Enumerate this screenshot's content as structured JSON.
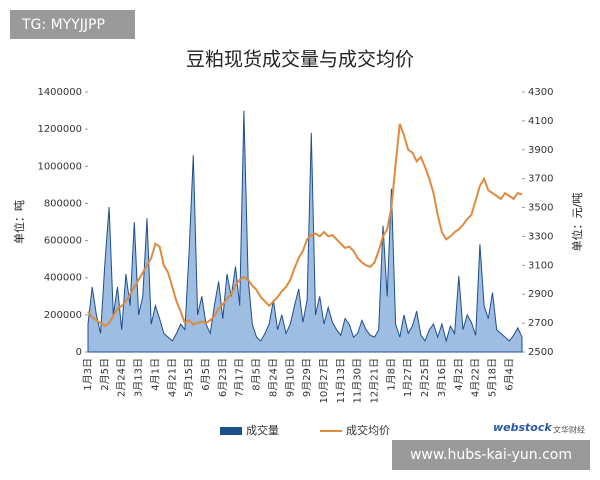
{
  "chart_data": {
    "type": "area-line",
    "title": "豆粕现货成交量与成交均价",
    "ylabel": "单位：吨",
    "y2label": "单位：元/吨",
    "categories": [
      "1月3日",
      null,
      null,
      null,
      "2月5日",
      null,
      null,
      null,
      "2月24日",
      null,
      null,
      null,
      "3月13日",
      null,
      null,
      null,
      "4月1日",
      null,
      null,
      null,
      "4月21日",
      null,
      null,
      null,
      "5月15日",
      null,
      null,
      null,
      "6月5日",
      null,
      null,
      null,
      "6月23日",
      null,
      null,
      null,
      "7月17日",
      null,
      null,
      null,
      "8月5日",
      null,
      null,
      null,
      "8月24日",
      null,
      null,
      null,
      "9月10日",
      null,
      null,
      null,
      "9月29日",
      null,
      null,
      null,
      "10月27日",
      null,
      null,
      null,
      "11月13日",
      null,
      null,
      null,
      "11月30日",
      null,
      null,
      null,
      "12月21日",
      null,
      null,
      null,
      "1月8日",
      null,
      null,
      null,
      "1月27日",
      null,
      null,
      null,
      "2月25日",
      null,
      null,
      null,
      "3月16日",
      null,
      null,
      null,
      "4月2日",
      null,
      null,
      null,
      "4月22日",
      null,
      null,
      null,
      "5月18日",
      null,
      null,
      null,
      "6月4日",
      null,
      null,
      null
    ],
    "series": [
      {
        "name": "成交量",
        "color": "#1f4e8c",
        "fill": "#9dbde2",
        "values": [
          150000,
          350000,
          200000,
          100000,
          480000,
          780000,
          200000,
          350000,
          120000,
          420000,
          250000,
          700000,
          200000,
          300000,
          720000,
          150000,
          250000,
          180000,
          100000,
          80000,
          60000,
          100000,
          150000,
          120000,
          540000,
          1060000,
          200000,
          300000,
          150000,
          100000,
          250000,
          380000,
          180000,
          420000,
          300000,
          460000,
          250000,
          1300000,
          400000,
          150000,
          80000,
          60000,
          100000,
          150000,
          280000,
          120000,
          200000,
          100000,
          150000,
          250000,
          340000,
          160000,
          280000,
          1180000,
          200000,
          300000,
          150000,
          240000,
          160000,
          120000,
          90000,
          180000,
          150000,
          80000,
          100000,
          170000,
          120000,
          90000,
          80000,
          120000,
          680000,
          300000,
          880000,
          150000,
          80000,
          200000,
          100000,
          140000,
          220000,
          90000,
          60000,
          120000,
          150000,
          80000,
          150000,
          60000,
          140000,
          100000,
          410000,
          120000,
          200000,
          160000,
          90000,
          580000,
          250000,
          180000,
          320000,
          120000,
          100000,
          80000,
          60000,
          90000,
          130000,
          80000
        ]
      },
      {
        "name": "成交均价",
        "color": "#e08a3c",
        "axis": "y2",
        "values": [
          2780,
          2740,
          2720,
          2700,
          2680,
          2700,
          2750,
          2800,
          2820,
          2850,
          2900,
          2950,
          3000,
          3050,
          3100,
          3150,
          3250,
          3230,
          3100,
          3050,
          2950,
          2850,
          2780,
          2700,
          2720,
          2690,
          2700,
          2710,
          2700,
          2720,
          2750,
          2800,
          2830,
          2870,
          2900,
          2960,
          3000,
          3020,
          3000,
          2960,
          2930,
          2880,
          2850,
          2820,
          2850,
          2880,
          2920,
          2950,
          3000,
          3080,
          3150,
          3200,
          3280,
          3310,
          3320,
          3300,
          3330,
          3300,
          3310,
          3280,
          3250,
          3220,
          3230,
          3200,
          3150,
          3120,
          3100,
          3090,
          3120,
          3200,
          3300,
          3350,
          3500,
          3800,
          4080,
          4000,
          3900,
          3880,
          3820,
          3850,
          3780,
          3700,
          3600,
          3450,
          3330,
          3280,
          3300,
          3330,
          3350,
          3380,
          3420,
          3450,
          3550,
          3650,
          3700,
          3620,
          3600,
          3580,
          3560,
          3600,
          3580,
          3560,
          3600,
          3590
        ]
      }
    ],
    "ylim": [
      0,
      1400000
    ],
    "yticks": [
      0,
      200000,
      400000,
      600000,
      800000,
      1000000,
      1200000,
      1400000
    ],
    "y2lim": [
      2500,
      4300
    ],
    "y2ticks": [
      2500,
      2700,
      2900,
      3100,
      3300,
      3500,
      3700,
      3900,
      4100,
      4300
    ],
    "legend": "bottom",
    "annotations": [
      "TG: MYYJJPP",
      "www.hubs-kai-yun.com",
      "webstock",
      "文华财经"
    ]
  }
}
